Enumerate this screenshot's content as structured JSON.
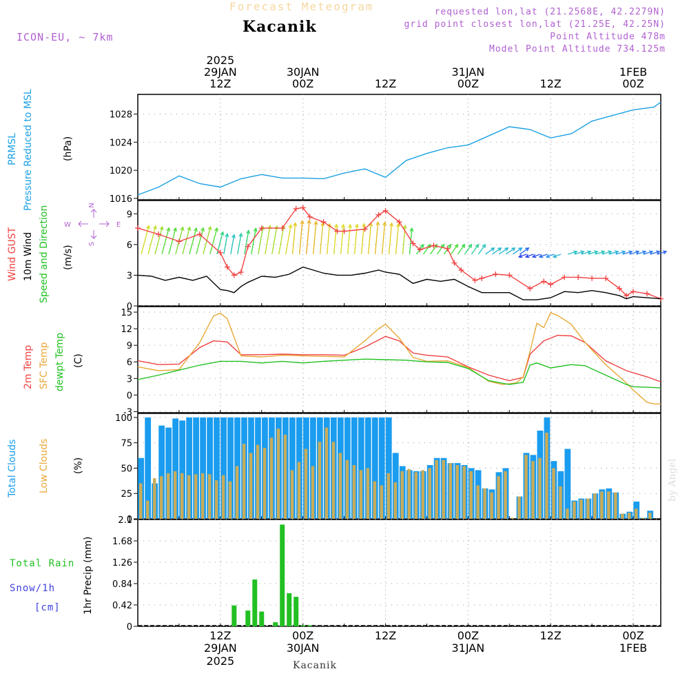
{
  "header": {
    "title": "Forecast Meteogram",
    "location": "Kacanik",
    "model": "ICON-EU, ~ 7km",
    "requested": "requested lon,lat (21.2568E, 42.2279N)",
    "grid_point": "grid point closest lon,lat (21.25E, 42.25N)",
    "point_altitude": "Point Altitude 478m",
    "model_altitude": "Model Point Altitude 734.125m"
  },
  "footer": {
    "location": "Kacanik",
    "watermark": "by Angel"
  },
  "time_axis": {
    "top": [
      {
        "h": 12,
        "l1": "2025",
        "l2": "29JAN",
        "l3": "12Z"
      },
      {
        "h": 24,
        "l1": "",
        "l2": "30JAN",
        "l3": "00Z"
      },
      {
        "h": 36,
        "l1": "",
        "l2": "",
        "l3": "12Z"
      },
      {
        "h": 48,
        "l1": "",
        "l2": "31JAN",
        "l3": "00Z"
      },
      {
        "h": 60,
        "l1": "",
        "l2": "",
        "l3": "12Z"
      },
      {
        "h": 72,
        "l1": "",
        "l2": "1FEB",
        "l3": "00Z"
      }
    ],
    "bottom": [
      {
        "h": 12,
        "l1": "12Z",
        "l2": "29JAN",
        "l3": "2025"
      },
      {
        "h": 24,
        "l1": "00Z",
        "l2": "30JAN",
        "l3": ""
      },
      {
        "h": 36,
        "l1": "12Z",
        "l2": "",
        "l3": ""
      },
      {
        "h": 48,
        "l1": "00Z",
        "l2": "31JAN",
        "l3": ""
      },
      {
        "h": 60,
        "l1": "12Z",
        "l2": "",
        "l3": ""
      },
      {
        "h": 72,
        "l1": "00Z",
        "l2": "1FEB",
        "l3": ""
      }
    ]
  },
  "panel_labels": {
    "pressure": {
      "l1": "PRMSL",
      "l2": "Pressure Reduced to MSL",
      "unit": "(hPa)"
    },
    "wind": {
      "l1": "Wind GUST",
      "l2": "10m Wind",
      "l3": "Speed and Direction",
      "unit": "(m/s)",
      "compass_n": "N",
      "compass_e": "E",
      "compass_w": "W",
      "compass_s": "S"
    },
    "temp": {
      "l1": "2m Temp",
      "l2": "SFC Temp",
      "l3": "dewpt Temp",
      "unit": "(C)"
    },
    "clouds": {
      "l1": "Total Clouds",
      "l2": "Low Clouds",
      "unit": "(%)"
    },
    "precip": {
      "l1": "Total  Rain",
      "l2": "Snow/1h",
      "l3": "[cm]",
      "ylabel": "1hr Precip (mm)"
    }
  },
  "colors": {
    "pressure": "#1ba1e2",
    "gust": "#f04040",
    "wind": "#000000",
    "temp2m": "#f04040",
    "sfc": "#e8a838",
    "dew": "#22c022",
    "total_clouds": "#1a9cef",
    "low_clouds": "#c8ac5a",
    "rain": "#22c022",
    "snow": "#4040e0",
    "title": "#f5d7a0",
    "meta": "#b060d0"
  },
  "chart_data": [
    {
      "type": "line",
      "title": "PRMSL Pressure Reduced to MSL",
      "ylabel": "(hPa)",
      "ylim": [
        1015.8,
        1030.8
      ],
      "yticks": [
        1016,
        1020,
        1024,
        1028
      ],
      "xlim": [
        0,
        76
      ],
      "x": [
        0,
        3,
        6,
        9,
        12,
        15,
        18,
        21,
        24,
        27,
        30,
        33,
        36,
        39,
        42,
        45,
        48,
        51,
        54,
        57,
        60,
        63,
        66,
        69,
        72,
        75,
        76
      ],
      "series": [
        {
          "name": "PRMSL",
          "values": [
            1016.5,
            1017.6,
            1019.2,
            1018.1,
            1017.6,
            1018.8,
            1019.4,
            1018.9,
            1018.9,
            1018.8,
            1019.6,
            1020.2,
            1019.0,
            1021.4,
            1022.4,
            1023.2,
            1023.6,
            1024.9,
            1026.2,
            1025.8,
            1024.6,
            1025.2,
            1027.0,
            1027.8,
            1028.6,
            1029.0,
            1029.7
          ]
        }
      ]
    },
    {
      "type": "line",
      "title": "Wind GUST / 10m Wind Speed and Direction",
      "ylabel": "(m/s)",
      "ylim": [
        0,
        10.3
      ],
      "yticks": [
        0,
        3,
        6,
        9
      ],
      "xlim": [
        0,
        76
      ],
      "series": [
        {
          "name": "Wind GUST",
          "x": [
            0,
            3,
            6,
            9,
            12,
            13,
            14,
            15,
            16,
            18,
            21,
            23,
            24,
            25,
            27,
            29,
            30,
            33,
            35,
            36,
            38,
            40,
            41,
            43,
            45,
            46,
            47,
            49,
            50,
            52,
            54,
            57,
            59,
            60,
            62,
            64,
            66,
            68,
            70,
            71,
            72,
            74,
            76
          ],
          "values": [
            7.6,
            7.0,
            6.3,
            7.0,
            5.2,
            3.8,
            3.0,
            3.3,
            5.8,
            7.6,
            7.6,
            9.5,
            9.6,
            8.7,
            8.2,
            7.3,
            7.3,
            7.5,
            8.9,
            9.3,
            8.2,
            6.1,
            5.5,
            5.9,
            5.6,
            4.2,
            3.5,
            2.5,
            2.7,
            3.1,
            3.0,
            1.7,
            2.4,
            2.1,
            2.8,
            2.8,
            2.7,
            2.7,
            1.7,
            1.0,
            1.4,
            1.2,
            0.7
          ]
        },
        {
          "name": "10m Wind",
          "x": [
            0,
            2,
            4,
            6,
            8,
            10,
            12,
            13,
            14,
            15,
            16,
            18,
            20,
            22,
            24,
            25,
            27,
            29,
            31,
            33,
            35,
            36,
            38,
            40,
            42,
            44,
            46,
            48,
            50,
            52,
            54,
            56,
            58,
            60,
            62,
            64,
            66,
            68,
            70,
            71,
            72,
            74,
            76
          ],
          "values": [
            3.0,
            2.9,
            2.5,
            2.8,
            2.5,
            2.9,
            1.6,
            1.5,
            1.3,
            1.9,
            2.3,
            2.9,
            2.8,
            3.1,
            3.8,
            3.6,
            3.2,
            3.0,
            3.0,
            3.2,
            3.5,
            3.3,
            3.1,
            2.2,
            2.6,
            2.4,
            2.6,
            1.9,
            1.3,
            1.3,
            1.3,
            0.6,
            0.6,
            0.8,
            1.4,
            1.3,
            1.5,
            1.3,
            1.0,
            0.7,
            0.9,
            0.8,
            0.7
          ]
        }
      ]
    },
    {
      "type": "line",
      "title": "2m Temp / SFC Temp / dewpt Temp",
      "ylabel": "(C)",
      "ylim": [
        -3.2,
        16.0
      ],
      "yticks": [
        -3,
        0,
        3,
        6,
        9,
        12,
        15
      ],
      "xlim": [
        0,
        76
      ],
      "series": [
        {
          "name": "2m Temp",
          "x": [
            0,
            3,
            6,
            9,
            11,
            13,
            15,
            18,
            21,
            24,
            27,
            30,
            33,
            36,
            38,
            40,
            42,
            45,
            48,
            51,
            54,
            56,
            57,
            59,
            61,
            63,
            65,
            68,
            71,
            74,
            76
          ],
          "values": [
            6.2,
            5.5,
            5.6,
            8.6,
            9.8,
            9.6,
            7.3,
            7.3,
            7.4,
            7.3,
            7.3,
            7.2,
            8.7,
            10.6,
            9.8,
            7.6,
            7.2,
            6.9,
            5.1,
            3.6,
            2.6,
            3.2,
            7.4,
            9.8,
            10.8,
            10.7,
            9.5,
            6.2,
            4.4,
            3.3,
            2.4
          ]
        },
        {
          "name": "SFC Temp",
          "x": [
            0,
            3,
            6,
            9,
            11,
            12,
            13,
            15,
            18,
            21,
            24,
            27,
            30,
            33,
            35,
            36,
            38,
            40,
            42,
            45,
            48,
            51,
            53,
            55,
            56,
            57,
            58,
            59,
            60,
            61,
            63,
            65,
            68,
            71,
            72,
            74,
            75,
            76
          ],
          "values": [
            5.1,
            4.4,
            4.6,
            9.5,
            14.3,
            14.8,
            13.8,
            7.1,
            6.9,
            7.2,
            7.1,
            7.0,
            6.9,
            9.8,
            12.0,
            12.8,
            10.3,
            6.8,
            6.1,
            6.2,
            5.0,
            2.5,
            1.9,
            2.2,
            3.3,
            7.9,
            13.0,
            12.2,
            14.9,
            14.4,
            12.8,
            9.5,
            5.5,
            2.2,
            0.9,
            -1.3,
            -1.6,
            -1.6
          ]
        },
        {
          "name": "dewpt Temp",
          "x": [
            0,
            3,
            6,
            9,
            12,
            15,
            18,
            21,
            24,
            27,
            30,
            33,
            36,
            39,
            42,
            45,
            48,
            51,
            54,
            56,
            57,
            58,
            60,
            63,
            65,
            68,
            71,
            72,
            74,
            76
          ],
          "values": [
            2.8,
            3.6,
            4.5,
            5.4,
            6.1,
            6.1,
            5.8,
            6.1,
            5.8,
            6.1,
            6.3,
            6.5,
            6.4,
            6.3,
            6.0,
            5.9,
            4.8,
            2.6,
            1.9,
            2.3,
            5.4,
            5.8,
            4.9,
            5.5,
            5.3,
            3.6,
            1.9,
            1.5,
            1.4,
            1.3
          ]
        }
      ]
    },
    {
      "type": "bar",
      "title": "Total Clouds / Low Clouds",
      "ylabel": "(%)",
      "ylim": [
        0,
        104
      ],
      "yticks": [
        0,
        25,
        50,
        75,
        100
      ],
      "xlim": [
        0,
        76
      ],
      "x": [
        0,
        1,
        2,
        3,
        4,
        5,
        6,
        7,
        8,
        9,
        10,
        11,
        12,
        13,
        14,
        15,
        16,
        17,
        18,
        19,
        20,
        21,
        22,
        23,
        24,
        25,
        26,
        27,
        28,
        29,
        30,
        31,
        32,
        33,
        34,
        35,
        36,
        37,
        38,
        39,
        40,
        41,
        42,
        43,
        44,
        45,
        46,
        47,
        48,
        49,
        50,
        51,
        52,
        53,
        54,
        55,
        56,
        57,
        58,
        59,
        60,
        61,
        62,
        63,
        64,
        65,
        66,
        67,
        68,
        69,
        70,
        71,
        72,
        73,
        74,
        75
      ],
      "series": [
        {
          "name": "Total Clouds",
          "values": [
            60,
            100,
            35,
            92,
            90,
            99,
            97,
            100,
            100,
            100,
            100,
            100,
            100,
            100,
            100,
            100,
            100,
            100,
            100,
            100,
            100,
            100,
            100,
            100,
            100,
            100,
            100,
            100,
            100,
            100,
            100,
            100,
            100,
            100,
            100,
            100,
            100,
            65,
            52,
            48,
            47,
            47,
            53,
            60,
            60,
            55,
            55,
            53,
            50,
            48,
            30,
            29,
            46,
            50,
            0,
            22,
            65,
            63,
            87,
            100,
            57,
            47,
            69,
            18,
            20,
            20,
            25,
            29,
            30,
            26,
            5,
            7,
            17,
            1,
            8,
            0
          ]
        },
        {
          "name": "Low Clouds",
          "values": [
            35,
            18,
            40,
            42,
            45,
            47,
            45,
            43,
            44,
            45,
            44,
            38,
            43,
            37,
            52,
            74,
            65,
            73,
            70,
            80,
            89,
            83,
            48,
            56,
            69,
            52,
            76,
            90,
            76,
            65,
            58,
            53,
            48,
            50,
            37,
            33,
            45,
            36,
            47,
            49,
            46,
            48,
            50,
            58,
            58,
            55,
            53,
            52,
            47,
            33,
            30,
            26,
            42,
            47,
            1,
            22,
            63,
            57,
            60,
            85,
            50,
            32,
            10,
            17,
            19,
            20,
            25,
            27,
            27,
            26,
            5,
            6,
            10,
            1,
            6,
            0
          ]
        }
      ]
    },
    {
      "type": "bar",
      "title": "1hr Precip",
      "ylabel": "1hr Precip (mm)",
      "ylim": [
        0,
        2.1
      ],
      "yticks": [
        0,
        0.42,
        0.84,
        1.26,
        1.68,
        2.1
      ],
      "xlim": [
        0,
        76
      ],
      "x": [
        14,
        16,
        17,
        18,
        20,
        21,
        22,
        23,
        24,
        25
      ],
      "series": [
        {
          "name": "Total Rain",
          "values": [
            0.41,
            0.31,
            0.92,
            0.29,
            0.08,
            2.0,
            0.65,
            0.58,
            0.02,
            0.02
          ]
        }
      ]
    }
  ]
}
